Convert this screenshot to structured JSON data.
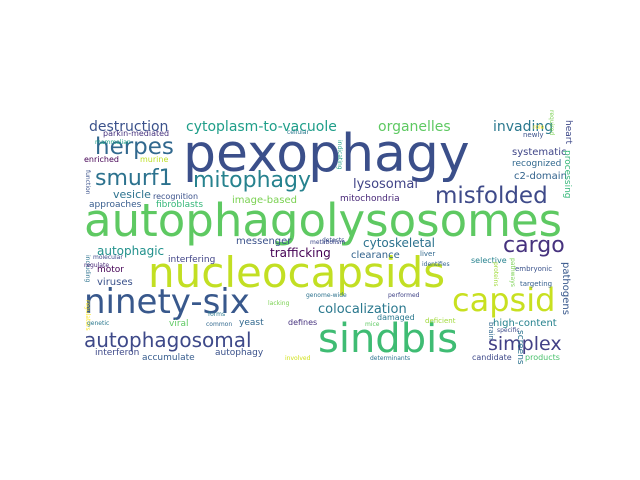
{
  "word_cloud": {
    "colormap": "viridis",
    "background": "#ffffff",
    "words": [
      {
        "id": "pexophagy",
        "text": "pexophagy",
        "color": "#3b4f8a"
      },
      {
        "id": "autophagolysosomes",
        "text": "autophagolysosomes",
        "color": "#5ec962"
      },
      {
        "id": "nucleocapsids",
        "text": "nucleocapsids",
        "color": "#c2df23"
      },
      {
        "id": "sindbis",
        "text": "sindbis",
        "color": "#3fbc73"
      },
      {
        "id": "ninety-six",
        "text": "ninety-six",
        "color": "#38588c"
      },
      {
        "id": "capsid",
        "text": "capsid",
        "color": "#c8e020"
      },
      {
        "id": "misfolded",
        "text": "misfolded",
        "color": "#3e4a89"
      },
      {
        "id": "mitophagy",
        "text": "mitophagy",
        "color": "#26828e"
      },
      {
        "id": "smurf1",
        "text": "smurf1",
        "color": "#2c728e"
      },
      {
        "id": "herpes",
        "text": "herpes",
        "color": "#31688e"
      },
      {
        "id": "cargo",
        "text": "cargo",
        "color": "#46327e"
      },
      {
        "id": "autophagosomal",
        "text": "autophagosomal",
        "color": "#3e4989"
      },
      {
        "id": "simplex",
        "text": "simplex",
        "color": "#424086"
      },
      {
        "id": "destruction",
        "text": "destruction",
        "color": "#3b528b"
      },
      {
        "id": "cytoplasm-to-vacuole",
        "text": "cytoplasm-to-vacuole",
        "color": "#1f9e89"
      },
      {
        "id": "organelles",
        "text": "organelles",
        "color": "#5ec962"
      },
      {
        "id": "invading",
        "text": "invading",
        "color": "#2a788e"
      },
      {
        "id": "lysosomal",
        "text": "lysosomal",
        "color": "#414487"
      },
      {
        "id": "colocalization",
        "text": "colocalization",
        "color": "#2a788e"
      },
      {
        "id": "cytoskeletal",
        "text": "cytoskeletal",
        "color": "#2c728e"
      },
      {
        "id": "trafficking",
        "text": "trafficking",
        "color": "#440154"
      },
      {
        "id": "autophagic",
        "text": "autophagic",
        "color": "#21918c"
      },
      {
        "id": "messenger",
        "text": "messenger",
        "color": "#3b528b"
      },
      {
        "id": "image-based",
        "text": "image-based",
        "color": "#7ad151"
      },
      {
        "id": "mitochondria",
        "text": "mitochondria",
        "color": "#482878"
      },
      {
        "id": "c2-domain",
        "text": "c2-domain",
        "color": "#33638d"
      },
      {
        "id": "systematic",
        "text": "systematic",
        "color": "#404688"
      },
      {
        "id": "recognized",
        "text": "recognized",
        "color": "#31688e"
      },
      {
        "id": "vesicle",
        "text": "vesicle",
        "color": "#2c728e"
      },
      {
        "id": "approaches",
        "text": "approaches",
        "color": "#365c8d"
      },
      {
        "id": "fibroblasts",
        "text": "fibroblasts",
        "color": "#35b779"
      },
      {
        "id": "recognition",
        "text": "recognition",
        "color": "#3b528b"
      },
      {
        "id": "parkin-mediated",
        "text": "parkin-mediated",
        "color": "#46327e"
      },
      {
        "id": "enriched",
        "text": "enriched",
        "color": "#440154"
      },
      {
        "id": "murine",
        "text": "murine",
        "color": "#bddf26"
      },
      {
        "id": "clearance",
        "text": "clearance",
        "color": "#33638d"
      },
      {
        "id": "viruses",
        "text": "viruses",
        "color": "#3b528b"
      },
      {
        "id": "motor",
        "text": "motor",
        "color": "#440154"
      },
      {
        "id": "interfering",
        "text": "interfering",
        "color": "#414487"
      },
      {
        "id": "damaged",
        "text": "damaged",
        "color": "#2a788e"
      },
      {
        "id": "defines",
        "text": "defines",
        "color": "#46327e"
      },
      {
        "id": "yeast",
        "text": "yeast",
        "color": "#31688e"
      },
      {
        "id": "autophagy",
        "text": "autophagy",
        "color": "#3b528b"
      },
      {
        "id": "viral",
        "text": "viral",
        "color": "#5ec962"
      },
      {
        "id": "accumulate",
        "text": "accumulate",
        "color": "#365c8d"
      },
      {
        "id": "interferon",
        "text": "interferon",
        "color": "#3e4989"
      },
      {
        "id": "high-content",
        "text": "high-content",
        "color": "#26828e"
      },
      {
        "id": "candidate",
        "text": "candidate",
        "color": "#3e4989"
      },
      {
        "id": "products",
        "text": "products",
        "color": "#4ac16d"
      },
      {
        "id": "selective",
        "text": "selective",
        "color": "#26828e"
      },
      {
        "id": "embryonic",
        "text": "embryonic",
        "color": "#3b528b"
      },
      {
        "id": "targeting",
        "text": "targeting",
        "color": "#355f8d"
      },
      {
        "id": "pathogens",
        "text": "pathogens",
        "color": "#38588c"
      },
      {
        "id": "screens",
        "text": "screens",
        "color": "#2c728e"
      },
      {
        "id": "processing",
        "text": "processing",
        "color": "#35b779"
      },
      {
        "id": "heart",
        "text": "heart",
        "color": "#3e4989"
      },
      {
        "id": "newly",
        "text": "newly",
        "color": "#3b528b"
      },
      {
        "id": "cellular",
        "text": "cellular",
        "color": "#2a788e"
      },
      {
        "id": "detects",
        "text": "detects",
        "color": "#3b528b"
      },
      {
        "id": "indicating",
        "text": "indicating",
        "color": "#1fa187"
      },
      {
        "id": "metabolism",
        "text": "metabolism",
        "color": "#3e4989"
      },
      {
        "id": "liver",
        "text": "liver",
        "color": "#31688e"
      },
      {
        "id": "identifies",
        "text": "identifies",
        "color": "#33638d"
      },
      {
        "id": "genome-wide",
        "text": "genome-wide",
        "color": "#2c728e"
      },
      {
        "id": "performed",
        "text": "performed",
        "color": "#414487"
      },
      {
        "id": "deficient",
        "text": "deficient",
        "color": "#a0da39"
      },
      {
        "id": "lacking",
        "text": "lacking",
        "color": "#7ad151"
      },
      {
        "id": "forms",
        "text": "forms",
        "color": "#2a788e"
      },
      {
        "id": "common",
        "text": "common",
        "color": "#31688e"
      },
      {
        "id": "genetic",
        "text": "genetic",
        "color": "#2a788e"
      },
      {
        "id": "molecular",
        "text": "molecular",
        "color": "#3e4989"
      },
      {
        "id": "regulate",
        "text": "regulate",
        "color": "#482878"
      },
      {
        "id": "including",
        "text": "including",
        "color": "#2c728e"
      },
      {
        "id": "function",
        "text": "function",
        "color": "#3b528b"
      },
      {
        "id": "mammalian",
        "text": "mammalian",
        "color": "#1fa187"
      },
      {
        "id": "involved",
        "text": "involved",
        "color": "#d2e21b"
      },
      {
        "id": "determinants",
        "text": "determinants",
        "color": "#2c728e"
      },
      {
        "id": "brain",
        "text": "brain",
        "color": "#31688e"
      },
      {
        "id": "specific",
        "text": "specific",
        "color": "#3e4989"
      },
      {
        "id": "mice",
        "text": "mice",
        "color": "#5ec962"
      },
      {
        "id": "pathways",
        "text": "pathways",
        "color": "#7ad151"
      },
      {
        "id": "proteins",
        "text": "proteins",
        "color": "#a0da39"
      },
      {
        "id": "role",
        "text": "role",
        "color": "#fde725"
      },
      {
        "id": "required",
        "text": "required",
        "color": "#7ad151"
      },
      {
        "id": "regulators",
        "text": "regulators",
        "color": "#fde725"
      }
    ]
  }
}
